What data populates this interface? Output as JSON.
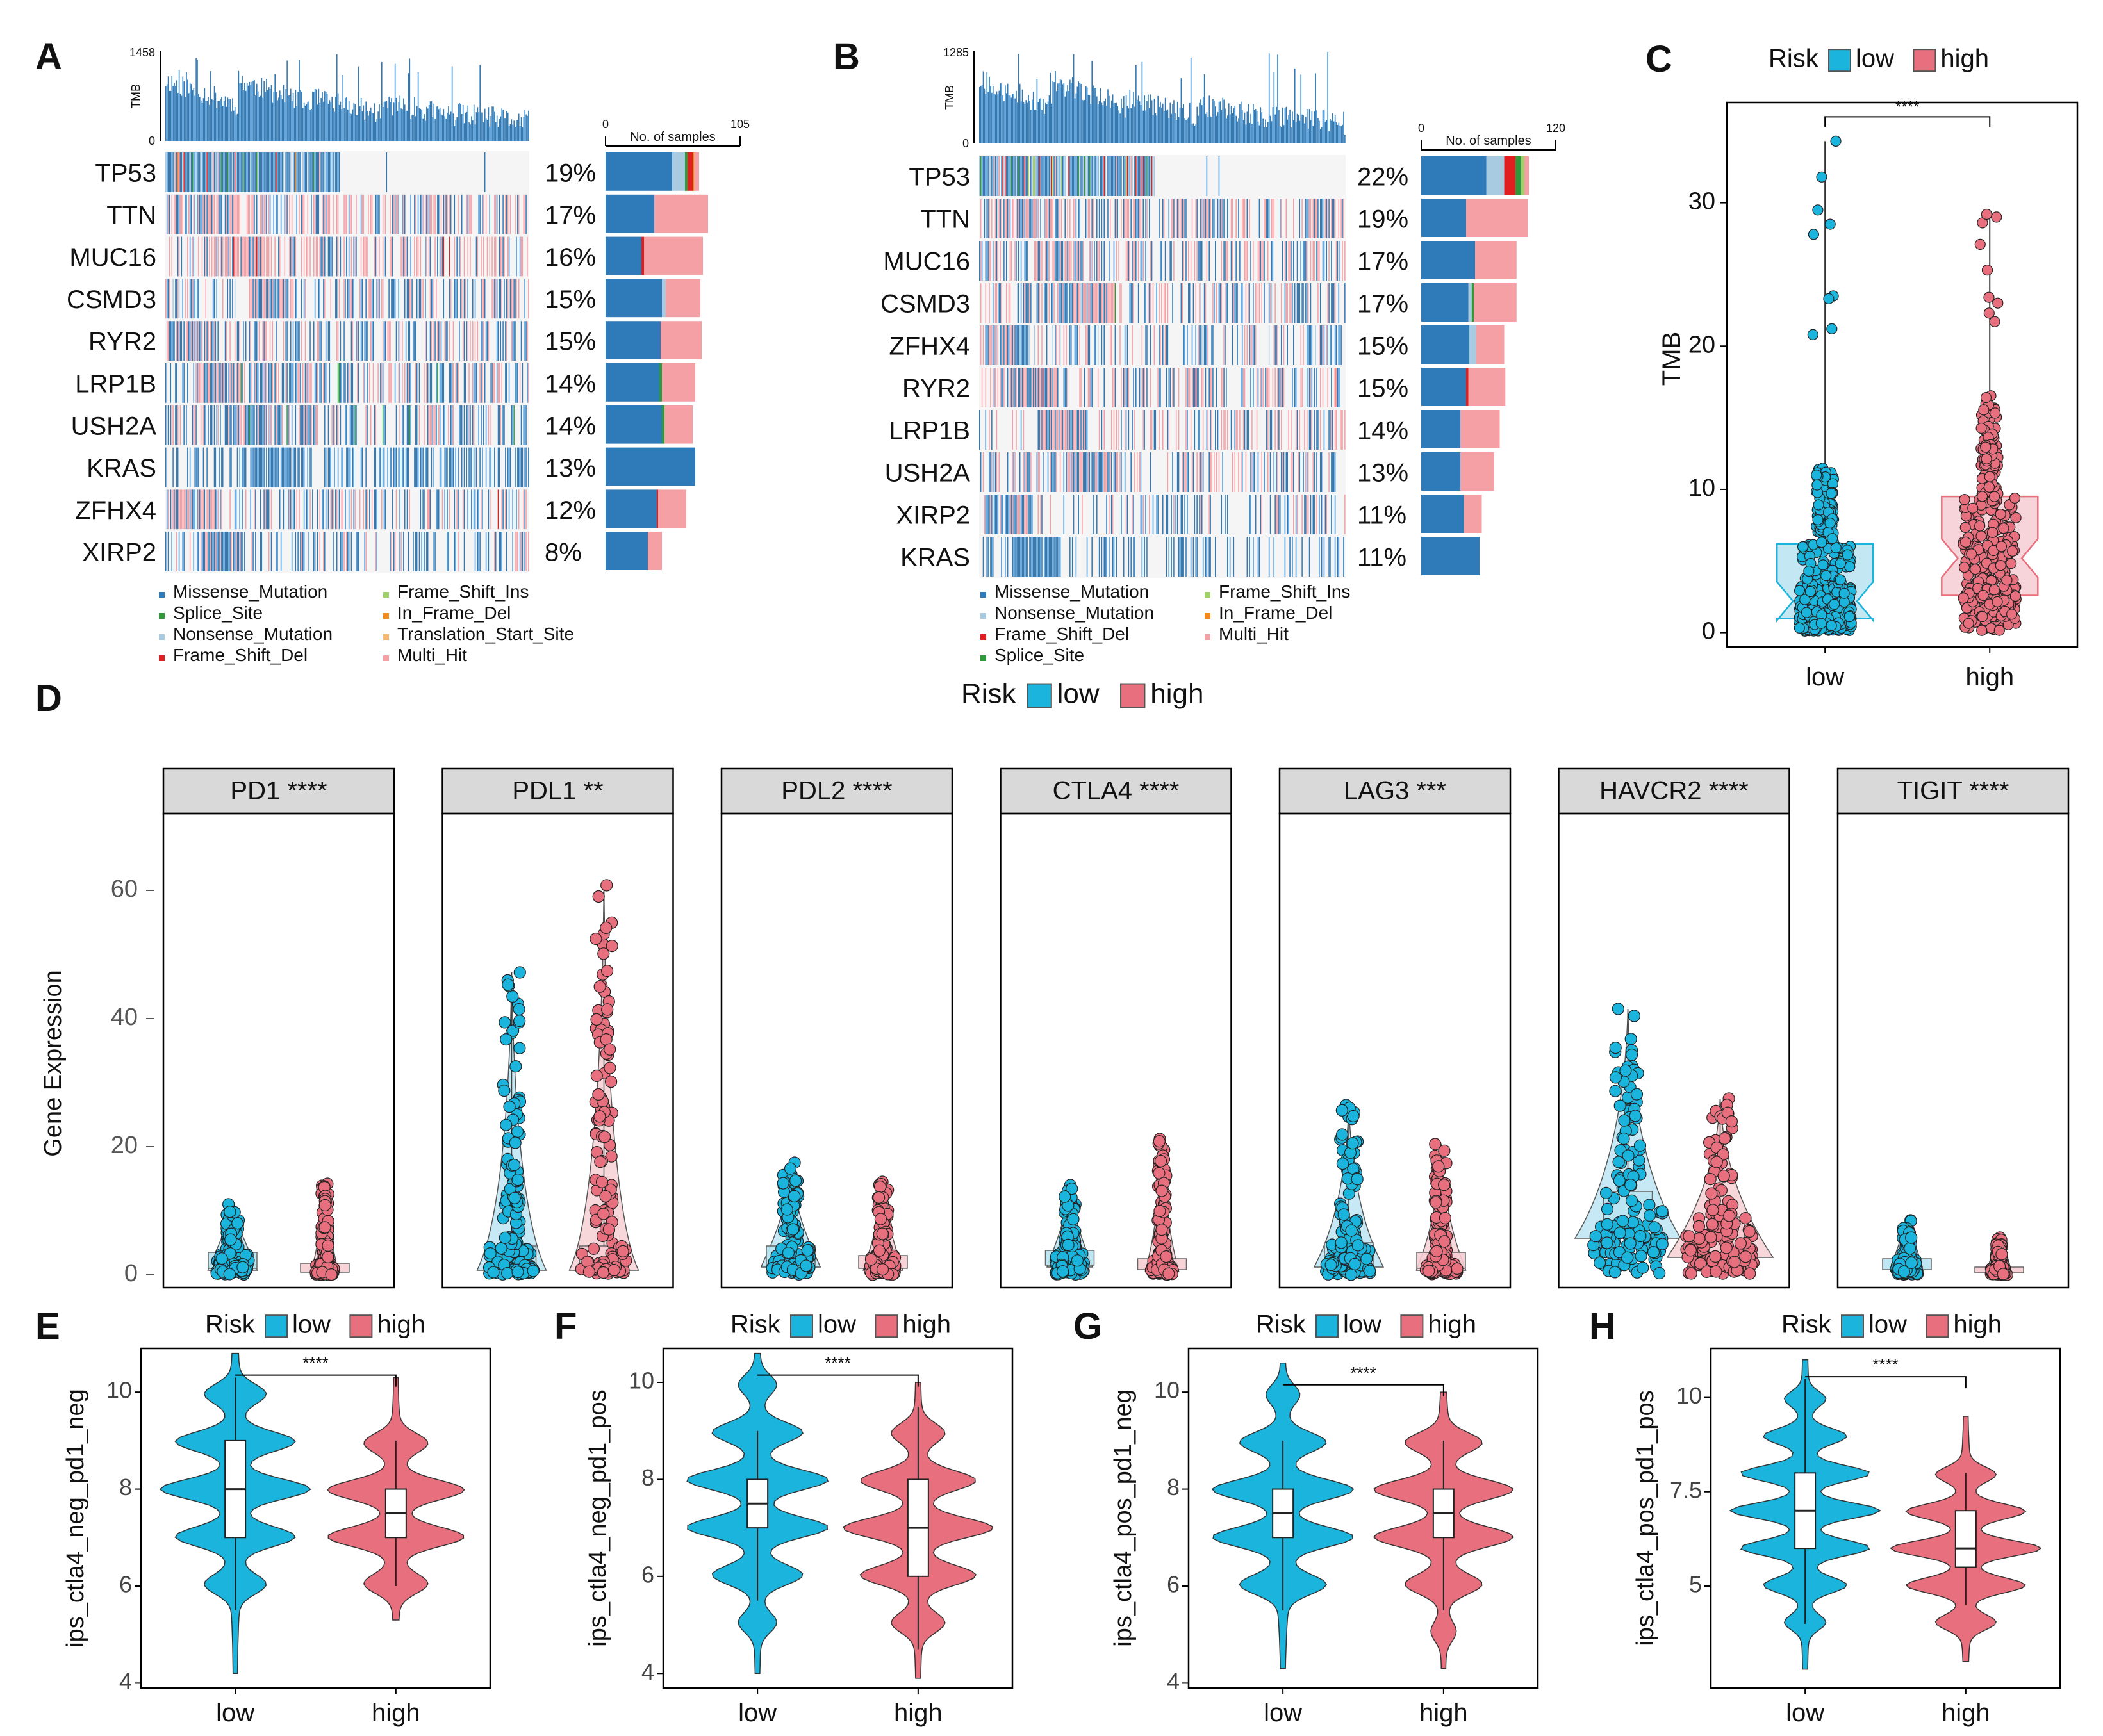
{
  "figure": {
    "panel_labels": [
      "A",
      "B",
      "C",
      "D",
      "E",
      "F",
      "G",
      "H"
    ],
    "colors": {
      "low": "#1ab4dc",
      "high": "#e8707e",
      "low_fill": "#b8e4f2",
      "high_fill": "#f6cdd2",
      "missense": "#2f7ab8",
      "splice": "#2e9a3c",
      "nonsense": "#a9cbe2",
      "frameshift_del": "#e02020",
      "frameshift_ins": "#9fd06a",
      "inframe_del": "#f08a1c",
      "translation_start": "#f8b86b",
      "multi_hit": "#f4a0a5",
      "strip": "#d9d9d9",
      "grid_bg": "#f5f5f5",
      "tmb_bar": "#2f7ab8"
    }
  },
  "chart_data": [
    {
      "panel": "A",
      "type": "oncoplot",
      "tmb_axis": {
        "label": "TMB",
        "max": "1458",
        "min": "0"
      },
      "samples_axis": {
        "label": "No. of samples",
        "min": "0",
        "max": "105"
      },
      "rows": [
        {
          "gene": "TP53",
          "pct": "19%",
          "counts": {
            "missense": 52,
            "nonsense": 10,
            "splice": 2,
            "frameshift_del": 4,
            "inframe_del": 1,
            "multi_hit": 4
          }
        },
        {
          "gene": "TTN",
          "pct": "17%",
          "counts": {
            "missense": 38,
            "multi_hit": 42
          }
        },
        {
          "gene": "MUC16",
          "pct": "16%",
          "counts": {
            "missense": 28,
            "frameshift_del": 2,
            "multi_hit": 46
          }
        },
        {
          "gene": "CSMD3",
          "pct": "15%",
          "counts": {
            "missense": 44,
            "nonsense": 3,
            "multi_hit": 27
          }
        },
        {
          "gene": "RYR2",
          "pct": "15%",
          "counts": {
            "missense": 43,
            "multi_hit": 32
          }
        },
        {
          "gene": "LRP1B",
          "pct": "14%",
          "counts": {
            "missense": 42,
            "splice": 2,
            "multi_hit": 26
          }
        },
        {
          "gene": "USH2A",
          "pct": "14%",
          "counts": {
            "missense": 44,
            "splice": 2,
            "multi_hit": 22
          }
        },
        {
          "gene": "KRAS",
          "pct": "13%",
          "counts": {
            "missense": 70
          }
        },
        {
          "gene": "ZFHX4",
          "pct": "12%",
          "counts": {
            "missense": 40,
            "frameshift_del": 1,
            "multi_hit": 22
          }
        },
        {
          "gene": "XIRP2",
          "pct": "8%",
          "counts": {
            "missense": 33,
            "multi_hit": 11
          }
        }
      ],
      "legend": [
        "Missense_Mutation",
        "Splice_Site",
        "Nonsense_Mutation",
        "Frame_Shift_Del",
        "Frame_Shift_Ins",
        "In_Frame_Del",
        "Translation_Start_Site",
        "Multi_Hit"
      ]
    },
    {
      "panel": "B",
      "type": "oncoplot",
      "tmb_axis": {
        "label": "TMB",
        "max": "1285",
        "min": "0"
      },
      "samples_axis": {
        "label": "No. of samples",
        "min": "0",
        "max": "120"
      },
      "rows": [
        {
          "gene": "TP53",
          "pct": "22%",
          "counts": {
            "missense": 58,
            "nonsense": 16,
            "frameshift_del": 10,
            "splice": 5,
            "frameshift_ins": 3,
            "multi_hit": 4
          }
        },
        {
          "gene": "TTN",
          "pct": "19%",
          "counts": {
            "missense": 40,
            "multi_hit": 55
          }
        },
        {
          "gene": "MUC16",
          "pct": "17%",
          "counts": {
            "missense": 48,
            "multi_hit": 37
          }
        },
        {
          "gene": "CSMD3",
          "pct": "17%",
          "counts": {
            "missense": 42,
            "nonsense": 3,
            "splice": 2,
            "multi_hit": 38
          }
        },
        {
          "gene": "ZFHX4",
          "pct": "15%",
          "counts": {
            "missense": 43,
            "nonsense": 6,
            "multi_hit": 25
          }
        },
        {
          "gene": "RYR2",
          "pct": "15%",
          "counts": {
            "missense": 40,
            "frameshift_del": 2,
            "multi_hit": 33
          }
        },
        {
          "gene": "LRP1B",
          "pct": "14%",
          "counts": {
            "missense": 35,
            "multi_hit": 35
          }
        },
        {
          "gene": "USH2A",
          "pct": "13%",
          "counts": {
            "missense": 35,
            "multi_hit": 30
          }
        },
        {
          "gene": "XIRP2",
          "pct": "11%",
          "counts": {
            "missense": 38,
            "multi_hit": 16
          }
        },
        {
          "gene": "KRAS",
          "pct": "11%",
          "counts": {
            "missense": 52
          }
        }
      ],
      "legend": [
        "Missense_Mutation",
        "Nonsense_Mutation",
        "Frame_Shift_Del",
        "Splice_Site",
        "Frame_Shift_Ins",
        "In_Frame_Del",
        "Multi_Hit"
      ]
    },
    {
      "panel": "C",
      "type": "box_scatter",
      "legend_title": "Risk",
      "legend": [
        "low",
        "high"
      ],
      "ylabel": "TMB",
      "ylim": [
        -1,
        37
      ],
      "yticks": [
        0,
        10,
        20,
        30
      ],
      "categories": [
        "low",
        "high"
      ],
      "significance": "****",
      "series": [
        {
          "name": "low",
          "q1": 1,
          "median": 2.2,
          "q3": 6.2,
          "max": 34.3,
          "outliers": [
            31.8,
            29.5,
            28.5,
            27.8,
            23.5,
            23.3,
            21.2,
            20.8
          ]
        },
        {
          "name": "high",
          "q1": 2.6,
          "median": 5.2,
          "q3": 9.5,
          "max": 29.2,
          "outliers": [
            29.0,
            28.6,
            27.1,
            25.3,
            23.4,
            23.0,
            22.3,
            21.7
          ]
        }
      ]
    },
    {
      "panel": "D",
      "type": "violin_box_facets",
      "legend_title": "Risk",
      "legend": [
        "low",
        "high"
      ],
      "ylabel": "Gene Expression",
      "ylim": [
        -2,
        72
      ],
      "yticks": [
        0,
        20,
        40,
        60
      ],
      "facets": [
        {
          "name": "PD1 ****",
          "low": {
            "median": 2.0,
            "q1": 1.0,
            "q3": 3.5,
            "max": 11.0
          },
          "high": {
            "median": 1.0,
            "q1": 0.4,
            "q3": 1.8,
            "max": 14.2
          }
        },
        {
          "name": "PDL1 **",
          "low": {
            "median": 2.5,
            "q1": 1.0,
            "q3": 4.5,
            "max": 47.2
          },
          "high": {
            "median": 2.5,
            "q1": 1.0,
            "q3": 4.5,
            "max": 60.8
          }
        },
        {
          "name": "PDL2 ****",
          "low": {
            "median": 3.0,
            "q1": 1.5,
            "q3": 4.5,
            "max": 17.5
          },
          "high": {
            "median": 2.0,
            "q1": 1.0,
            "q3": 3.0,
            "max": 14.5
          }
        },
        {
          "name": "CTLA4 ****",
          "low": {
            "median": 2.5,
            "q1": 1.5,
            "q3": 3.8,
            "max": 14.0
          },
          "high": {
            "median": 1.5,
            "q1": 0.8,
            "q3": 2.5,
            "max": 21.2
          }
        },
        {
          "name": "LAG3 ***",
          "low": {
            "median": 3.0,
            "q1": 1.5,
            "q3": 5.0,
            "max": 26.5
          },
          "high": {
            "median": 2.0,
            "q1": 1.0,
            "q3": 3.5,
            "max": 20.4
          }
        },
        {
          "name": "HAVCR2 ****",
          "low": {
            "median": 9.0,
            "q1": 6.0,
            "q3": 13.0,
            "max": 41.5
          },
          "high": {
            "median": 5.5,
            "q1": 3.0,
            "q3": 9.0,
            "max": 27.5
          }
        },
        {
          "name": "TIGIT ****",
          "low": {
            "median": 1.5,
            "q1": 0.8,
            "q3": 2.5,
            "max": 8.5
          },
          "high": {
            "median": 0.6,
            "q1": 0.3,
            "q3": 1.2,
            "max": 5.8
          }
        }
      ]
    },
    {
      "panel": "E",
      "type": "violin",
      "legend_title": "Risk",
      "legend": [
        "low",
        "high"
      ],
      "ylabel": "ips_ctla4_neg_pd1_neg",
      "ylim": [
        3.9,
        10.9
      ],
      "yticks": [
        4,
        6,
        8,
        10
      ],
      "categories": [
        "low",
        "high"
      ],
      "significance": "****",
      "series": [
        {
          "name": "low",
          "min": 4.2,
          "max": 10.8,
          "q1": 7,
          "median": 8,
          "q3": 9,
          "whisker_low": 5.5,
          "whisker_high": 10.3,
          "peaks": [
            6,
            7,
            8,
            9,
            10
          ]
        },
        {
          "name": "high",
          "min": 5.3,
          "max": 10.3,
          "q1": 7,
          "median": 7.5,
          "q3": 8,
          "whisker_low": 6,
          "whisker_high": 9,
          "peaks": [
            6,
            7,
            8,
            9
          ]
        }
      ]
    },
    {
      "panel": "F",
      "type": "violin",
      "legend_title": "Risk",
      "legend": [
        "low",
        "high"
      ],
      "ylabel": "ips_ctla4_neg_pd1_pos",
      "ylim": [
        3.7,
        10.7
      ],
      "yticks": [
        4,
        6,
        8,
        10
      ],
      "categories": [
        "low",
        "high"
      ],
      "significance": "****",
      "series": [
        {
          "name": "low",
          "min": 4,
          "max": 10.6,
          "q1": 7,
          "median": 7.5,
          "q3": 8,
          "whisker_low": 5.5,
          "whisker_high": 9,
          "peaks": [
            5,
            6,
            7,
            8,
            9,
            10
          ]
        },
        {
          "name": "high",
          "min": 3.9,
          "max": 10.0,
          "q1": 6,
          "median": 7,
          "q3": 8,
          "whisker_low": 4.5,
          "whisker_high": 9.5,
          "peaks": [
            5,
            6,
            7,
            8,
            9
          ]
        }
      ]
    },
    {
      "panel": "G",
      "type": "violin",
      "legend_title": "Risk",
      "legend": [
        "low",
        "high"
      ],
      "ylabel": "ips_ctla4_pos_pd1_neg",
      "ylim": [
        3.9,
        10.9
      ],
      "yticks": [
        4,
        6,
        8,
        10
      ],
      "categories": [
        "low",
        "high"
      ],
      "significance": "****",
      "series": [
        {
          "name": "low",
          "min": 4.3,
          "max": 10.6,
          "q1": 7,
          "median": 7.5,
          "q3": 8,
          "whisker_low": 5.5,
          "whisker_high": 9,
          "peaks": [
            6,
            7,
            8,
            9,
            10
          ]
        },
        {
          "name": "high",
          "min": 4.3,
          "max": 10.0,
          "q1": 7,
          "median": 7.5,
          "q3": 8,
          "whisker_low": 5.5,
          "whisker_high": 9,
          "peaks": [
            5,
            6,
            7,
            8,
            9
          ]
        }
      ]
    },
    {
      "panel": "H",
      "type": "violin",
      "legend_title": "Risk",
      "legend": [
        "low",
        "high"
      ],
      "ylabel": "ips_ctla4_pos_pd1_pos",
      "ylim": [
        2.3,
        11.3
      ],
      "yticks": [
        5,
        7.5,
        10
      ],
      "ytick_labels": [
        "5",
        "7.5",
        "10"
      ],
      "categories": [
        "low",
        "high"
      ],
      "significance": "****",
      "series": [
        {
          "name": "low",
          "min": 2.8,
          "max": 11.0,
          "q1": 6,
          "median": 7,
          "q3": 8,
          "whisker_low": 4,
          "whisker_high": 10.5,
          "peaks": [
            4,
            5,
            6,
            7,
            8,
            9,
            10
          ]
        },
        {
          "name": "high",
          "min": 3.0,
          "max": 9.5,
          "q1": 5.5,
          "median": 6,
          "q3": 7,
          "whisker_low": 4.5,
          "whisker_high": 8,
          "peaks": [
            4,
            5,
            6,
            7,
            8
          ]
        }
      ]
    }
  ]
}
